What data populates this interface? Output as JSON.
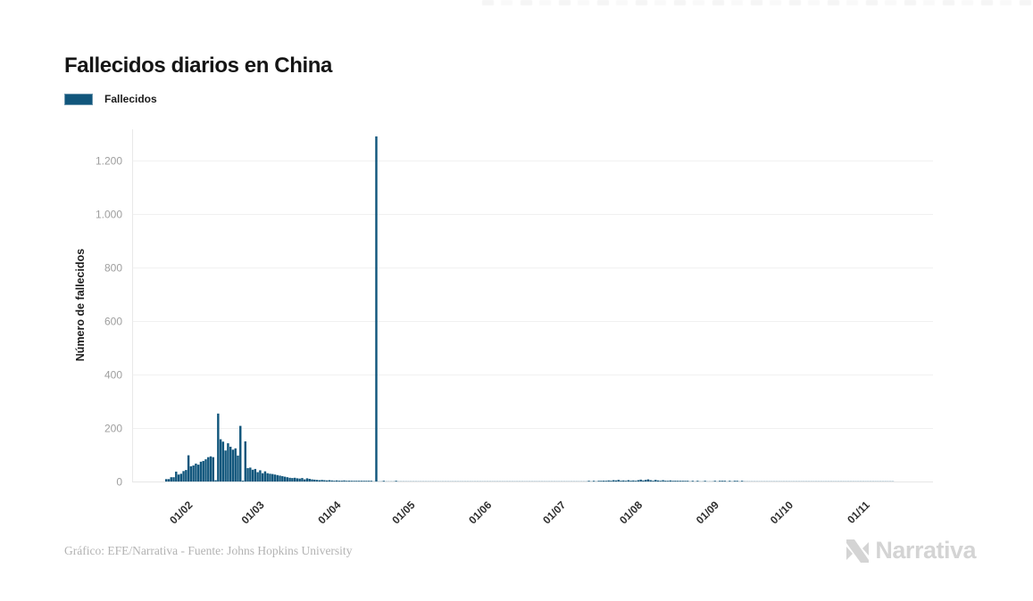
{
  "header": {
    "title": "Fallecidos diarios en China"
  },
  "legend": {
    "label": "Fallecidos",
    "color": "#11567c"
  },
  "footer": {
    "credit": "Gráfico: EFE/Narrativa - Fuente: Johns Hopkins University",
    "logo_text": "Narrativa"
  },
  "chart_data": {
    "type": "bar",
    "title": "Fallecidos diarios en China",
    "xlabel": "",
    "ylabel": "Número de fallecidos",
    "ylim": [
      0,
      1300
    ],
    "grid": "horizontal",
    "legend_position": "top-left",
    "bar_color": "#11567c",
    "y_tick_values": [
      0,
      200,
      400,
      600,
      800,
      1000,
      1200
    ],
    "y_tick_labels": [
      "0",
      "200",
      "400",
      "600",
      "800",
      "1.000",
      "1.200"
    ],
    "x_tick_labels": [
      "01/02",
      "01/03",
      "01/04",
      "01/05",
      "01/06",
      "01/07",
      "01/08",
      "01/09",
      "01/10",
      "01/11"
    ],
    "x_tick_day_offsets": [
      9,
      38,
      69,
      99,
      130,
      160,
      191,
      222,
      252,
      283
    ],
    "x_start_date": "23/01/2020",
    "x_end_date": "12/11/2020",
    "peak_value": 1290,
    "peak_date": "17/04/2020",
    "series": [
      {
        "name": "Fallecidos",
        "color": "#11567c",
        "values": [
          9,
          9,
          16,
          16,
          37,
          26,
          29,
          39,
          43,
          98,
          57,
          60,
          67,
          63,
          74,
          77,
          83,
          91,
          94,
          91,
          5,
          254,
          158,
          149,
          116,
          143,
          130,
          119,
          124,
          97,
          208,
          3,
          150,
          50,
          52,
          44,
          47,
          35,
          42,
          31,
          38,
          31,
          29,
          28,
          26,
          24,
          22,
          20,
          18,
          16,
          14,
          13,
          14,
          12,
          11,
          13,
          8,
          12,
          10,
          8,
          7,
          6,
          5,
          6,
          5,
          4,
          5,
          4,
          3,
          4,
          3,
          3,
          4,
          2,
          3,
          2,
          2,
          1,
          2,
          2,
          1,
          1,
          2,
          1,
          0,
          1290,
          0,
          0,
          1,
          0,
          0,
          0,
          0,
          1,
          0,
          0,
          0,
          0,
          0,
          0,
          0,
          0,
          0,
          0,
          0,
          0,
          0,
          0,
          0,
          0,
          0,
          0,
          0,
          0,
          0,
          0,
          0,
          0,
          0,
          0,
          0,
          0,
          0,
          0,
          0,
          0,
          0,
          0,
          0,
          0,
          0,
          0,
          0,
          0,
          0,
          0,
          0,
          0,
          0,
          0,
          0,
          0,
          0,
          0,
          0,
          0,
          0,
          0,
          0,
          0,
          0,
          0,
          0,
          0,
          0,
          0,
          0,
          0,
          0,
          0,
          0,
          0,
          0,
          0,
          0,
          0,
          0,
          0,
          0,
          0,
          0,
          1,
          0,
          1,
          0,
          2,
          1,
          3,
          2,
          4,
          3,
          5,
          4,
          6,
          3,
          4,
          2,
          5,
          3,
          4,
          2,
          5,
          7,
          4,
          6,
          8,
          5,
          3,
          6,
          4,
          2,
          5,
          3,
          2,
          4,
          2,
          3,
          1,
          2,
          1,
          2,
          1,
          0,
          1,
          0,
          1,
          0,
          0,
          1,
          0,
          0,
          0,
          1,
          0,
          1,
          2,
          1,
          0,
          1,
          0,
          1,
          1,
          0,
          1,
          0,
          0,
          0,
          0,
          0,
          0,
          0,
          0,
          0,
          0,
          0,
          0,
          0,
          0,
          0,
          0,
          0,
          0,
          0,
          0,
          0,
          0,
          0,
          0,
          0,
          0,
          0,
          0,
          0,
          0,
          0,
          0,
          0,
          0,
          0,
          0,
          0,
          0,
          0,
          0,
          0,
          0,
          0,
          0,
          0,
          0,
          0,
          0,
          0,
          0,
          0,
          0,
          0,
          0,
          0,
          0,
          0,
          0,
          0,
          0,
          0
        ]
      }
    ]
  }
}
